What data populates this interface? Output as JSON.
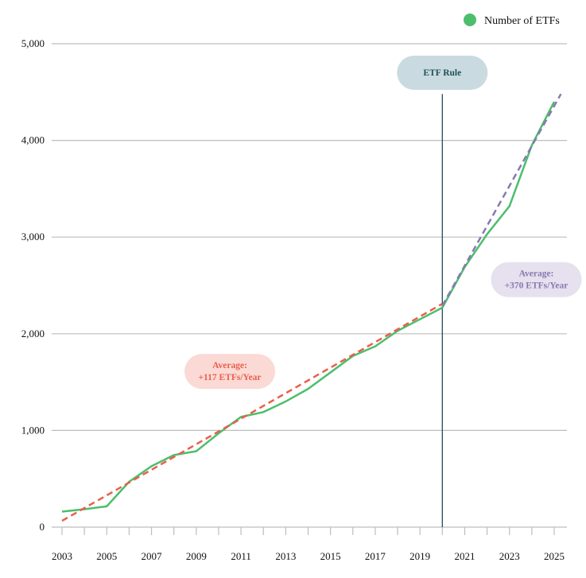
{
  "chart_data": {
    "type": "line",
    "title": "",
    "xlabel": "",
    "ylabel": "",
    "xlim": [
      2002.6,
      2025.6
    ],
    "ylim": [
      0,
      5000
    ],
    "grid": "horizontal",
    "legend_placement": "top-right",
    "x_ticks": [
      "2003",
      "2005",
      "2007",
      "2009",
      "2011",
      "2013",
      "2015",
      "2017",
      "2019",
      "2021",
      "2023",
      "2025"
    ],
    "y_ticks": [
      {
        "value": 0,
        "label": "0"
      },
      {
        "value": 1000,
        "label": "1,000"
      },
      {
        "value": 2000,
        "label": "2,000"
      },
      {
        "value": 3000,
        "label": "3,000"
      },
      {
        "value": 4000,
        "label": "4,000"
      },
      {
        "value": 5000,
        "label": "5,000"
      }
    ],
    "series": [
      {
        "name": "Number of ETFs",
        "color": "#4cbe6c",
        "x": [
          2003,
          2004,
          2005,
          2006,
          2007,
          2008,
          2009,
          2010,
          2011,
          2012,
          2013,
          2014,
          2015,
          2016,
          2017,
          2018,
          2019,
          2020,
          2021,
          2022,
          2023,
          2024,
          2025
        ],
        "values": [
          160,
          185,
          215,
          470,
          630,
          745,
          785,
          970,
          1140,
          1190,
          1300,
          1430,
          1600,
          1770,
          1870,
          2030,
          2150,
          2270,
          2690,
          3030,
          3320,
          3950,
          4400
        ]
      }
    ],
    "trendlines": [
      {
        "color": "#e8604c",
        "x": [
          2003,
          2020
        ],
        "values": [
          65,
          2310
        ]
      },
      {
        "color": "#8a78b0",
        "x": [
          2020,
          2025.3
        ],
        "values": [
          2290,
          4480
        ]
      }
    ],
    "event_line": {
      "x": 2020,
      "top_value": 4480,
      "label": "ETF Rule",
      "color": "#1f4f5a",
      "box_color": "#c9dbe0"
    },
    "annotations": [
      {
        "line1": "Average:",
        "line2": "+117 ETFs/Year",
        "text_color": "#e8604c",
        "box_color": "#fbd9d5",
        "x": 2010.5,
        "y": 1610
      },
      {
        "line1": "Average:",
        "line2": "+370 ETFs/Year",
        "text_color": "#8a78b0",
        "box_color": "#e5e1ee",
        "x": 2024.2,
        "y": 2560
      }
    ]
  }
}
